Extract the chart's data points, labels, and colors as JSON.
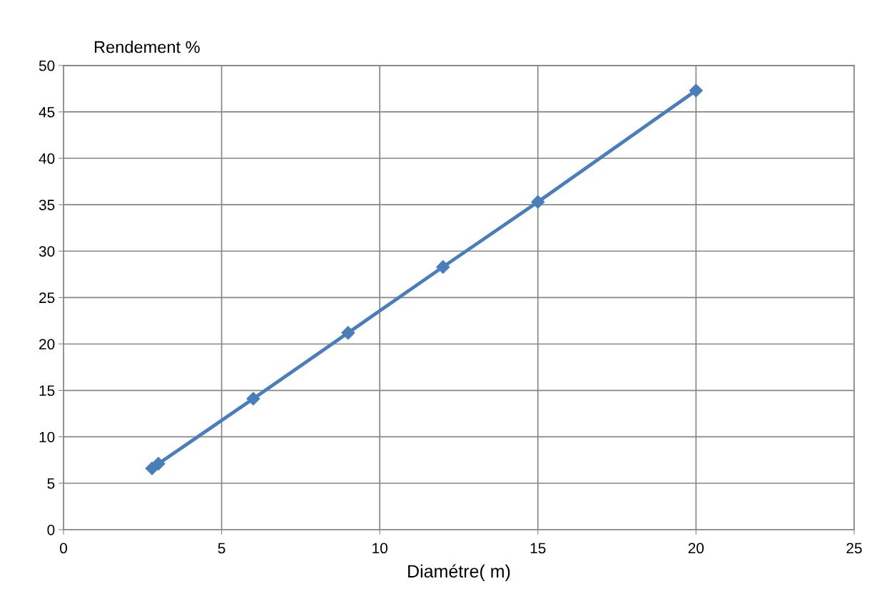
{
  "chart_data": {
    "type": "line",
    "xlabel": "Diamétre( m)",
    "ylabel": "Rendement %",
    "x": [
      2.8,
      3,
      6,
      9,
      12,
      15,
      20
    ],
    "series": [
      {
        "color": "#4a7ebb",
        "values": [
          6.6,
          7.1,
          14.1,
          21.2,
          28.3,
          35.3,
          47.3
        ]
      }
    ],
    "xlim": [
      0,
      25
    ],
    "xticks": [
      0,
      5,
      10,
      15,
      20,
      25
    ],
    "ylim": [
      0,
      50
    ],
    "yticks": [
      0,
      5,
      10,
      15,
      20,
      25,
      30,
      35,
      40,
      45,
      50
    ],
    "grid": true,
    "marker": "diamond",
    "line_style": "solid"
  }
}
